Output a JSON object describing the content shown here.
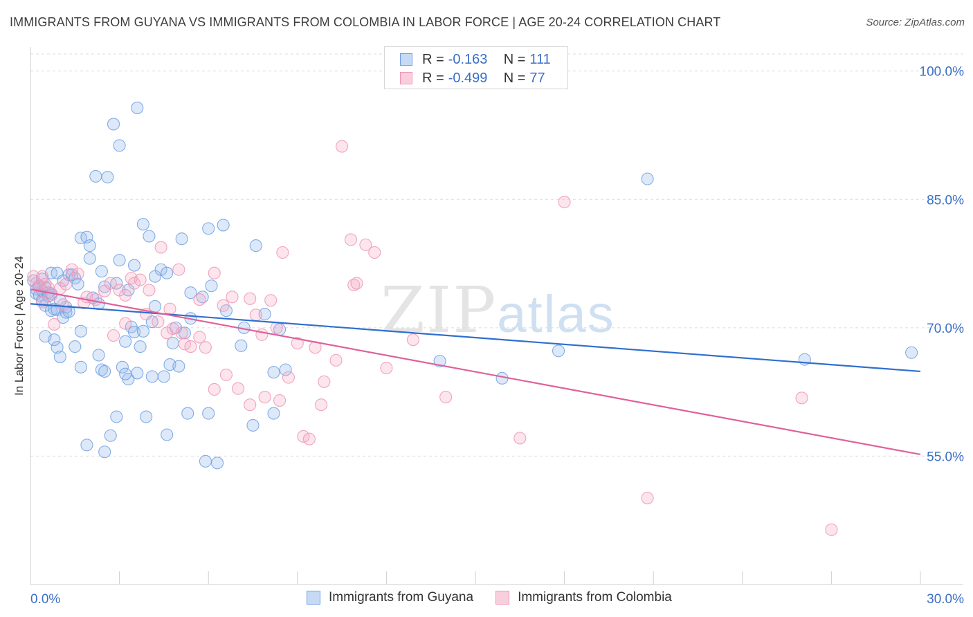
{
  "title": "IMMIGRANTS FROM GUYANA VS IMMIGRANTS FROM COLOMBIA IN LABOR FORCE | AGE 20-24 CORRELATION CHART",
  "source": "Source: ZipAtlas.com",
  "watermark": {
    "zip": "ZIP",
    "atlas": "atlas"
  },
  "legend_top": {
    "rows": [
      {
        "r_label": "R = ",
        "r_value": "-0.163",
        "n_label": "N = ",
        "n_value": "111"
      },
      {
        "r_label": "R = ",
        "r_value": "-0.499",
        "n_label": "N = ",
        "n_value": "77"
      }
    ]
  },
  "colors": {
    "guyana": "#6f9fe3",
    "colombia": "#ef95b4",
    "guyana_line": "#2f6fce",
    "colombia_line": "#e0609a",
    "tick_text": "#3a6fc8"
  },
  "chart_data": {
    "type": "scatter",
    "title": "IMMIGRANTS FROM GUYANA VS IMMIGRANTS FROM COLOMBIA IN LABOR FORCE | AGE 20-24 CORRELATION CHART",
    "xlabel": "",
    "ylabel": "In Labor Force | Age 20-24",
    "xlim": [
      0,
      30
    ],
    "ylim": [
      40,
      102
    ],
    "x_tick_labels": [
      "0.0%",
      "30.0%"
    ],
    "y_ticks": [
      55,
      70,
      85,
      100
    ],
    "y_tick_labels": [
      "55.0%",
      "70.0%",
      "85.0%",
      "100.0%"
    ],
    "grid": true,
    "legend_position": "bottom",
    "series": [
      {
        "name": "Immigrants from Guyana",
        "trend": {
          "x": [
            0,
            30
          ],
          "y": [
            72.8,
            64.9
          ]
        },
        "points": [
          [
            0.1,
            75.5
          ],
          [
            0.2,
            74.5
          ],
          [
            0.2,
            74.0
          ],
          [
            0.3,
            73.8
          ],
          [
            0.3,
            74.9
          ],
          [
            0.4,
            74.3
          ],
          [
            0.4,
            73.2
          ],
          [
            0.4,
            75.7
          ],
          [
            0.5,
            74.7
          ],
          [
            0.5,
            72.6
          ],
          [
            0.6,
            74.1
          ],
          [
            0.6,
            73.7
          ],
          [
            0.7,
            74.0
          ],
          [
            0.7,
            76.4
          ],
          [
            0.7,
            72.0
          ],
          [
            0.8,
            68.6
          ],
          [
            0.8,
            72.2
          ],
          [
            0.9,
            76.4
          ],
          [
            0.9,
            67.7
          ],
          [
            0.9,
            72.1
          ],
          [
            1.0,
            66.6
          ],
          [
            1.1,
            71.2
          ],
          [
            1.2,
            72.4
          ],
          [
            1.2,
            71.8
          ],
          [
            1.3,
            76.2
          ],
          [
            1.3,
            71.9
          ],
          [
            1.4,
            76.2
          ],
          [
            1.5,
            67.8
          ],
          [
            1.5,
            75.8
          ],
          [
            1.6,
            75.1
          ],
          [
            1.7,
            65.4
          ],
          [
            1.7,
            69.6
          ],
          [
            1.7,
            80.5
          ],
          [
            1.9,
            80.6
          ],
          [
            1.9,
            56.3
          ],
          [
            2.0,
            79.6
          ],
          [
            2.0,
            78.1
          ],
          [
            2.1,
            73.5
          ],
          [
            2.2,
            87.7
          ],
          [
            2.3,
            66.8
          ],
          [
            2.4,
            65.1
          ],
          [
            2.4,
            76.6
          ],
          [
            2.5,
            74.8
          ],
          [
            2.5,
            64.9
          ],
          [
            2.5,
            55.5
          ],
          [
            2.6,
            87.6
          ],
          [
            2.7,
            57.4
          ],
          [
            2.8,
            93.8
          ],
          [
            2.9,
            59.6
          ],
          [
            3.0,
            91.3
          ],
          [
            3.0,
            77.9
          ],
          [
            3.1,
            65.4
          ],
          [
            3.2,
            68.4
          ],
          [
            3.3,
            64.0
          ],
          [
            3.3,
            74.4
          ],
          [
            3.4,
            70.1
          ],
          [
            3.5,
            77.3
          ],
          [
            3.5,
            69.5
          ],
          [
            3.6,
            64.7
          ],
          [
            3.6,
            95.7
          ],
          [
            3.7,
            67.8
          ],
          [
            3.8,
            82.1
          ],
          [
            3.8,
            69.6
          ],
          [
            3.9,
            59.6
          ],
          [
            4.0,
            80.7
          ],
          [
            4.1,
            64.3
          ],
          [
            4.1,
            70.7
          ],
          [
            4.2,
            72.5
          ],
          [
            4.2,
            76.0
          ],
          [
            4.4,
            76.8
          ],
          [
            4.5,
            64.3
          ],
          [
            4.6,
            76.4
          ],
          [
            4.6,
            57.5
          ],
          [
            4.7,
            65.7
          ],
          [
            4.9,
            70.0
          ],
          [
            5.0,
            65.5
          ],
          [
            5.1,
            80.4
          ],
          [
            5.3,
            60.0
          ],
          [
            5.4,
            71.1
          ],
          [
            5.4,
            74.1
          ],
          [
            5.8,
            73.6
          ],
          [
            5.9,
            54.4
          ],
          [
            6.0,
            81.6
          ],
          [
            6.0,
            60.0
          ],
          [
            6.1,
            74.9
          ],
          [
            6.3,
            54.2
          ],
          [
            6.5,
            82.0
          ],
          [
            7.1,
            67.9
          ],
          [
            7.2,
            70.0
          ],
          [
            7.5,
            58.6
          ],
          [
            7.6,
            79.6
          ],
          [
            8.2,
            64.8
          ],
          [
            8.2,
            60.0
          ],
          [
            8.4,
            69.8
          ],
          [
            8.6,
            65.1
          ],
          [
            13.8,
            66.1
          ],
          [
            15.9,
            64.1
          ],
          [
            17.8,
            67.3
          ],
          [
            20.8,
            87.4
          ],
          [
            26.1,
            66.3
          ],
          [
            29.7,
            67.1
          ],
          [
            1.1,
            75.5
          ],
          [
            2.9,
            75.2
          ],
          [
            3.2,
            64.6
          ],
          [
            5.2,
            69.4
          ],
          [
            0.5,
            69.0
          ],
          [
            1.0,
            73.2
          ],
          [
            2.3,
            72.8
          ],
          [
            4.8,
            68.2
          ],
          [
            6.6,
            72.0
          ],
          [
            7.9,
            71.6
          ]
        ]
      },
      {
        "name": "Immigrants from Colombia",
        "trend": {
          "x": [
            0,
            30
          ],
          "y": [
            74.5,
            55.2
          ]
        },
        "points": [
          [
            0.1,
            76.0
          ],
          [
            0.2,
            75.2
          ],
          [
            0.3,
            74.7
          ],
          [
            0.4,
            76.0
          ],
          [
            0.5,
            75.1
          ],
          [
            0.6,
            74.7
          ],
          [
            0.7,
            73.8
          ],
          [
            0.8,
            70.4
          ],
          [
            1.0,
            74.6
          ],
          [
            1.1,
            72.7
          ],
          [
            1.2,
            75.1
          ],
          [
            1.4,
            76.8
          ],
          [
            1.6,
            76.3
          ],
          [
            1.8,
            72.9
          ],
          [
            1.9,
            73.6
          ],
          [
            2.2,
            73.3
          ],
          [
            2.5,
            74.3
          ],
          [
            2.7,
            75.2
          ],
          [
            2.8,
            69.1
          ],
          [
            3.0,
            74.4
          ],
          [
            3.2,
            70.5
          ],
          [
            3.2,
            73.8
          ],
          [
            3.4,
            75.8
          ],
          [
            3.5,
            75.2
          ],
          [
            3.7,
            75.6
          ],
          [
            3.9,
            71.6
          ],
          [
            4.0,
            74.4
          ],
          [
            4.3,
            70.7
          ],
          [
            4.4,
            79.4
          ],
          [
            4.6,
            69.4
          ],
          [
            4.7,
            72.2
          ],
          [
            4.8,
            69.9
          ],
          [
            5.0,
            76.8
          ],
          [
            5.1,
            69.4
          ],
          [
            5.2,
            68.1
          ],
          [
            5.4,
            67.8
          ],
          [
            5.7,
            68.9
          ],
          [
            5.7,
            73.3
          ],
          [
            5.9,
            67.7
          ],
          [
            6.2,
            62.8
          ],
          [
            6.2,
            76.4
          ],
          [
            6.5,
            72.6
          ],
          [
            6.6,
            64.5
          ],
          [
            6.8,
            73.6
          ],
          [
            7.0,
            62.9
          ],
          [
            7.4,
            61.0
          ],
          [
            7.4,
            73.4
          ],
          [
            7.6,
            71.5
          ],
          [
            7.8,
            69.2
          ],
          [
            7.9,
            61.9
          ],
          [
            8.1,
            73.2
          ],
          [
            8.3,
            70.0
          ],
          [
            8.4,
            61.5
          ],
          [
            8.5,
            78.8
          ],
          [
            8.7,
            64.2
          ],
          [
            9.0,
            68.2
          ],
          [
            9.2,
            57.3
          ],
          [
            9.4,
            57.0
          ],
          [
            9.6,
            67.7
          ],
          [
            9.8,
            61.0
          ],
          [
            9.9,
            63.7
          ],
          [
            10.3,
            66.2
          ],
          [
            10.5,
            91.2
          ],
          [
            10.8,
            80.3
          ],
          [
            10.9,
            75.0
          ],
          [
            11.0,
            75.2
          ],
          [
            11.3,
            79.7
          ],
          [
            11.6,
            78.8
          ],
          [
            12.0,
            65.3
          ],
          [
            12.9,
            68.6
          ],
          [
            14.0,
            61.9
          ],
          [
            16.5,
            57.1
          ],
          [
            18.0,
            84.7
          ],
          [
            20.8,
            50.1
          ],
          [
            26.0,
            61.8
          ],
          [
            27.0,
            46.4
          ],
          [
            0.4,
            73.0
          ]
        ]
      }
    ]
  },
  "bottom_legend": {
    "items": [
      {
        "label": "Immigrants from Guyana"
      },
      {
        "label": "Immigrants from Colombia"
      }
    ]
  }
}
